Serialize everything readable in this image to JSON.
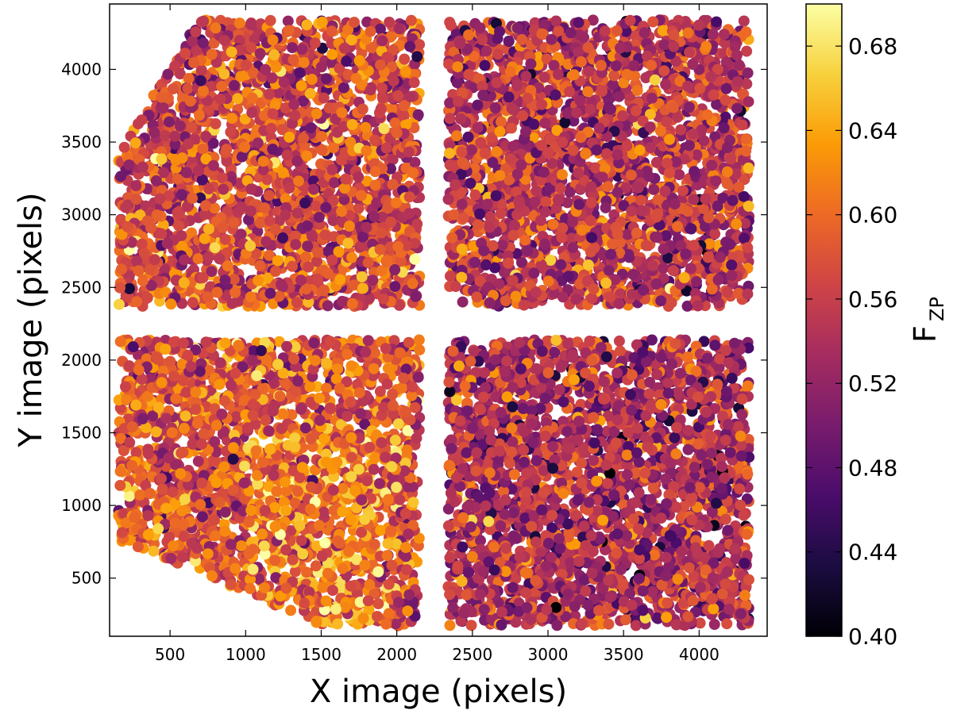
{
  "chart_data": {
    "type": "scatter",
    "title": "",
    "xlabel": "X image (pixels)",
    "ylabel": "Y image (pixels)",
    "xlim": [
      100,
      4450
    ],
    "ylim": [
      100,
      4450
    ],
    "x_ticks": [
      "500",
      "1000",
      "1500",
      "2000",
      "2500",
      "3000",
      "3500",
      "4000"
    ],
    "y_ticks": [
      "500",
      "1000",
      "1500",
      "2000",
      "2500",
      "3000",
      "3500",
      "4000"
    ],
    "x_tick_values": [
      500,
      1000,
      1500,
      2000,
      2500,
      3000,
      3500,
      4000
    ],
    "y_tick_values": [
      500,
      1000,
      1500,
      2000,
      2500,
      3000,
      3500,
      4000
    ],
    "grid": false,
    "colorbar": {
      "label": "F",
      "label_subscript": "ZP",
      "range": [
        0.4,
        0.7
      ],
      "ticks": [
        "0.40",
        "0.44",
        "0.48",
        "0.52",
        "0.56",
        "0.60",
        "0.64",
        "0.68"
      ],
      "tick_values": [
        0.4,
        0.44,
        0.48,
        0.52,
        0.56,
        0.6,
        0.64,
        0.68
      ],
      "colormap": "inferno",
      "colormap_stops": [
        "#000004",
        "#1b0c41",
        "#4a0c6b",
        "#781c6d",
        "#a52c60",
        "#cf4446",
        "#ed6925",
        "#fb9b06",
        "#f7d13d",
        "#fcffa4"
      ]
    },
    "quadrants": [
      {
        "name": "top-left",
        "x_range": [
          160,
          2150
        ],
        "y_range": [
          2370,
          4340
        ],
        "mean_value": 0.57
      },
      {
        "name": "top-right",
        "x_range": [
          2340,
          4330
        ],
        "y_range": [
          2370,
          4340
        ],
        "mean_value": 0.55
      },
      {
        "name": "bottom-left",
        "x_range": [
          160,
          2150
        ],
        "y_range": [
          170,
          2140
        ],
        "mean_value": 0.58
      },
      {
        "name": "bottom-right",
        "x_range": [
          2340,
          4330
        ],
        "y_range": [
          170,
          2140
        ],
        "mean_value": 0.54
      }
    ],
    "n_points_per_quadrant": 2600
  }
}
